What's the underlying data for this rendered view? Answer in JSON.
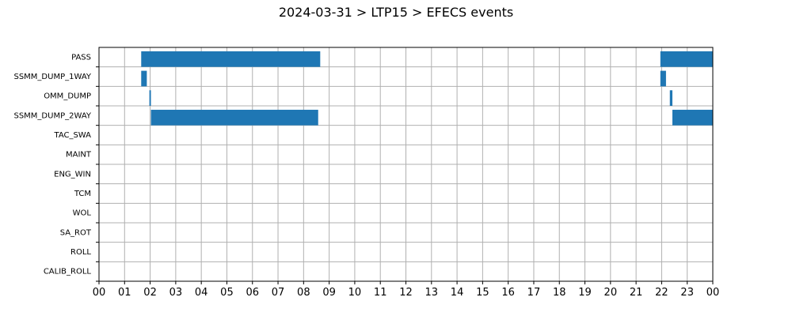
{
  "chart_data": {
    "type": "bar",
    "orientation": "horizontal-timeline",
    "title": "2024-03-31 > LTP15 > EFECS events",
    "xlabel": "",
    "ylabel": "",
    "x_range_hours": [
      0,
      24
    ],
    "x_tick_labels": [
      "00",
      "01",
      "02",
      "03",
      "04",
      "05",
      "06",
      "07",
      "08",
      "09",
      "10",
      "11",
      "12",
      "13",
      "14",
      "15",
      "16",
      "17",
      "18",
      "19",
      "20",
      "21",
      "22",
      "23",
      "00"
    ],
    "categories": [
      "PASS",
      "SSMM_DUMP_1WAY",
      "OMM_DUMP",
      "SSMM_DUMP_2WAY",
      "TAC_SWA",
      "MAINT",
      "ENG_WIN",
      "TCM",
      "WOL",
      "SA_ROT",
      "ROLL",
      "CALIB_ROLL"
    ],
    "grid": true,
    "bar_color": "#1f77b4",
    "intervals": [
      {
        "category": "PASS",
        "start_hour": 1.65,
        "end_hour": 8.65
      },
      {
        "category": "PASS",
        "start_hour": 21.95,
        "end_hour": 24.0
      },
      {
        "category": "SSMM_DUMP_1WAY",
        "start_hour": 1.65,
        "end_hour": 1.87
      },
      {
        "category": "SSMM_DUMP_1WAY",
        "start_hour": 21.95,
        "end_hour": 22.17
      },
      {
        "category": "OMM_DUMP",
        "start_hour": 1.97,
        "end_hour": 2.03
      },
      {
        "category": "OMM_DUMP",
        "start_hour": 22.32,
        "end_hour": 22.42
      },
      {
        "category": "SSMM_DUMP_2WAY",
        "start_hour": 2.03,
        "end_hour": 8.57
      },
      {
        "category": "SSMM_DUMP_2WAY",
        "start_hour": 22.42,
        "end_hour": 24.0
      }
    ]
  }
}
